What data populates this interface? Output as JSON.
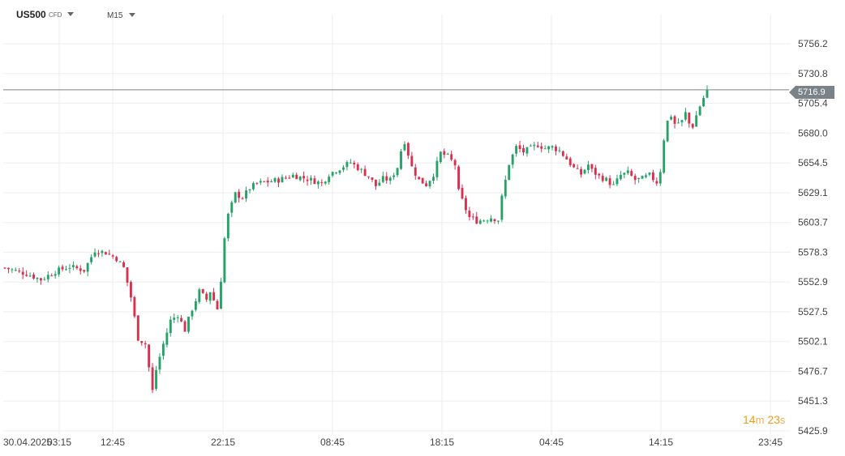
{
  "header": {
    "symbol": "US500",
    "instrument_type": "CFD",
    "timeframe": "M15"
  },
  "countdown": {
    "minutes": "14",
    "minutes_unit": "m",
    "seconds": "23",
    "seconds_unit": "s"
  },
  "current_price_label": "5716.9",
  "colors": {
    "up": "#26a269",
    "down": "#d9304f",
    "grid": "#eeeeee",
    "price_line": "#7b8388",
    "countdown": "#f39c12"
  },
  "chart_data": {
    "type": "candlestick",
    "y_ticks": [
      "5756.2",
      "5730.8",
      "5705.4",
      "5680.0",
      "5654.5",
      "5629.1",
      "5603.7",
      "5578.3",
      "5552.9",
      "5527.5",
      "5502.1",
      "5476.7",
      "5451.3",
      "5425.9"
    ],
    "ylim": [
      5425.9,
      5770
    ],
    "x_ticks": [
      "30.04.2025",
      "03:15",
      "12:45",
      "22:15",
      "08:45",
      "18:15",
      "04:45",
      "14:15",
      "23:45"
    ],
    "current_price": 5716.9,
    "grid": true,
    "path": [
      [
        0,
        5565
      ],
      [
        6,
        5560
      ],
      [
        10,
        5555
      ],
      [
        14,
        5562
      ],
      [
        18,
        5566
      ],
      [
        22,
        5563
      ],
      [
        25,
        5580
      ],
      [
        28,
        5578
      ],
      [
        31,
        5573
      ],
      [
        33,
        5565
      ],
      [
        35,
        5540
      ],
      [
        37,
        5505
      ],
      [
        39,
        5500
      ],
      [
        40,
        5480
      ],
      [
        41,
        5460
      ],
      [
        42,
        5478
      ],
      [
        44,
        5500
      ],
      [
        46,
        5520
      ],
      [
        48,
        5525
      ],
      [
        50,
        5512
      ],
      [
        52,
        5530
      ],
      [
        54,
        5545
      ],
      [
        56,
        5538
      ],
      [
        57,
        5545
      ],
      [
        59,
        5530
      ],
      [
        60,
        5555
      ],
      [
        61,
        5590
      ],
      [
        62,
        5610
      ],
      [
        64,
        5628
      ],
      [
        66,
        5625
      ],
      [
        68,
        5633
      ],
      [
        70,
        5637
      ],
      [
        74,
        5639
      ],
      [
        76,
        5640
      ],
      [
        80,
        5644
      ],
      [
        85,
        5640
      ],
      [
        88,
        5637
      ],
      [
        90,
        5645
      ],
      [
        93,
        5650
      ],
      [
        96,
        5655
      ],
      [
        99,
        5648
      ],
      [
        101,
        5643
      ],
      [
        103,
        5635
      ],
      [
        105,
        5641
      ],
      [
        107,
        5640
      ],
      [
        109,
        5651
      ],
      [
        110,
        5665
      ],
      [
        111,
        5673
      ],
      [
        113,
        5651
      ],
      [
        115,
        5640
      ],
      [
        117,
        5636
      ],
      [
        119,
        5645
      ],
      [
        121,
        5663
      ],
      [
        123,
        5660
      ],
      [
        125,
        5653
      ],
      [
        126,
        5630
      ],
      [
        128,
        5615
      ],
      [
        129,
        5608
      ],
      [
        131,
        5605
      ],
      [
        133,
        5606
      ],
      [
        135,
        5608
      ],
      [
        137,
        5606
      ],
      [
        138,
        5625
      ],
      [
        140,
        5654
      ],
      [
        142,
        5668
      ],
      [
        144,
        5664
      ],
      [
        146,
        5667
      ],
      [
        148,
        5670
      ],
      [
        150,
        5667
      ],
      [
        152,
        5668
      ],
      [
        154,
        5665
      ],
      [
        156,
        5658
      ],
      [
        158,
        5650
      ],
      [
        160,
        5645
      ],
      [
        162,
        5653
      ],
      [
        163,
        5648
      ],
      [
        165,
        5643
      ],
      [
        167,
        5640
      ],
      [
        169,
        5635
      ],
      [
        171,
        5644
      ],
      [
        173,
        5646
      ],
      [
        175,
        5640
      ],
      [
        177,
        5641
      ],
      [
        179,
        5644
      ],
      [
        181,
        5638
      ],
      [
        182,
        5648
      ],
      [
        183,
        5675
      ],
      [
        184,
        5690
      ],
      [
        185,
        5695
      ],
      [
        186,
        5688
      ],
      [
        188,
        5690
      ],
      [
        189,
        5697
      ],
      [
        190,
        5688
      ],
      [
        191,
        5686
      ],
      [
        192,
        5695
      ],
      [
        193,
        5703
      ],
      [
        194,
        5710
      ],
      [
        195,
        5716.9
      ]
    ]
  }
}
